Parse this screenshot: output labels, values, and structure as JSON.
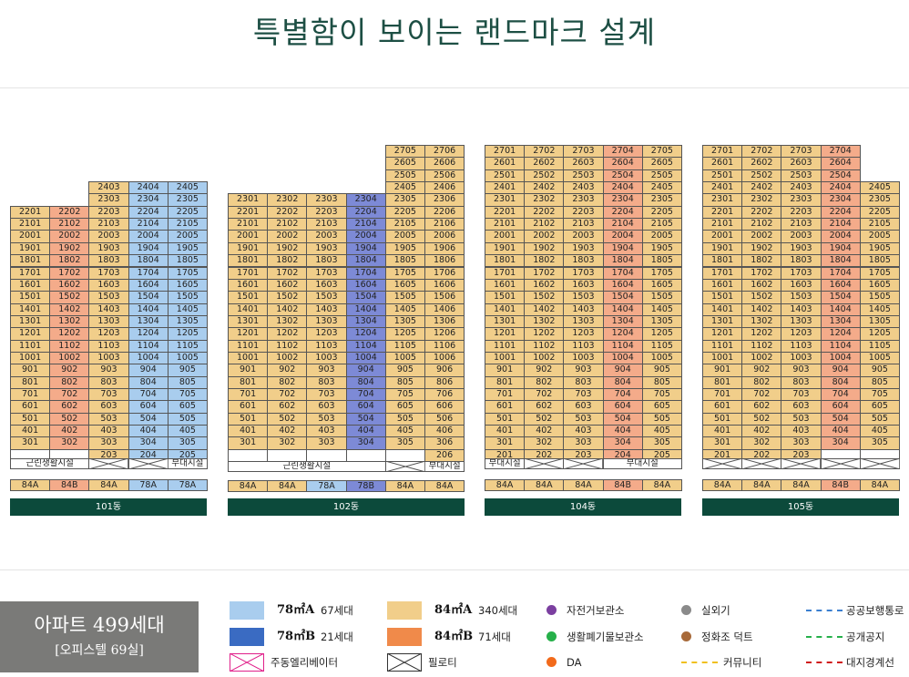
{
  "page": {
    "title": "특별함이 보이는 랜드마크 설계"
  },
  "colors": {
    "78A": "#a9cdee",
    "78B": "#7d8ad6",
    "84A": "#f1ce8a",
    "84B": "#f4ab8a",
    "empty": "#ffffff",
    "label": "#ffffff",
    "band": "#0c4a3b"
  },
  "buildings": [
    {
      "name": "101동",
      "labels": [
        "근린생활시설",
        "부대시설"
      ],
      "types": [
        "84A",
        "84B",
        "84A",
        "78A",
        "78A"
      ]
    },
    {
      "name": "102동",
      "labels": [
        "근린생활시설",
        "부대시설"
      ],
      "types": [
        "84A",
        "84A",
        "78A",
        "78B",
        "84A",
        "84A"
      ]
    },
    {
      "name": "104동",
      "labels": [
        "부대시설",
        "부대시설"
      ],
      "types": [
        "84A",
        "84A",
        "84A",
        "84B",
        "84A"
      ]
    },
    {
      "name": "105동",
      "labels": [],
      "types": [
        "84A",
        "84A",
        "84A",
        "84B",
        "84A"
      ]
    }
  ],
  "summary": {
    "line1": "아파트 499세대",
    "line2": "[오피스텔 69실]"
  },
  "legend": {
    "units": [
      {
        "size": "78㎡A",
        "count": "67세대",
        "color": "#a9cdee"
      },
      {
        "size": "84㎡A",
        "count": "340세대",
        "color": "#f1ce8a"
      },
      {
        "size": "78㎡B",
        "count": "21세대",
        "color": "#3a6bc2"
      },
      {
        "size": "84㎡B",
        "count": "71세대",
        "color": "#f08a4a"
      }
    ],
    "elevator": "주동엘리베이터",
    "piloti": "필로티",
    "dots": [
      {
        "label": "자전거보관소",
        "color": "#7b3fa0"
      },
      {
        "label": "생활폐기물보관소",
        "color": "#26b04a"
      },
      {
        "label": "DA",
        "color": "#f26a1b"
      },
      {
        "label": "실외기",
        "color": "#8a8a8a"
      },
      {
        "label": "정화조 덕트",
        "color": "#a86a3a"
      }
    ],
    "lines": [
      {
        "label": "커뮤니티",
        "color": "#f0c020"
      },
      {
        "label": "공공보행통로",
        "color": "#3a7fd0"
      },
      {
        "label": "공개공지",
        "color": "#26b04a"
      },
      {
        "label": "대지경계선",
        "color": "#d01a1a"
      }
    ]
  }
}
